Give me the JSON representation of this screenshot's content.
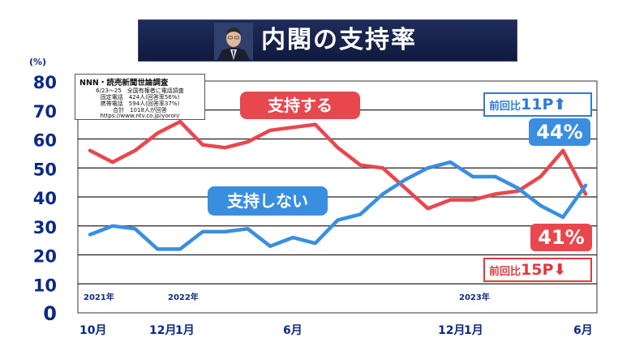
{
  "title": "内閣の支持率",
  "unit": "(%)",
  "source": {
    "title": "NNN・読売新聞世論調査",
    "lines": [
      "6/23～25　全国有権者に電話調査",
      "固定電話　424人(回答率56%)",
      "携帯電話　594人(回答率37%)",
      "合計　1018人が回答",
      "https://www.ntv.co.jp/yoron/"
    ]
  },
  "labels": {
    "support": "支持する",
    "nosupport": "支持しない",
    "support_latest": "41%",
    "nosupport_latest": "44%",
    "nosupport_change_prefix": "前回比",
    "nosupport_change_value": "11P",
    "nosupport_change_arrow": "⬆",
    "support_change_prefix": "前回比",
    "support_change_value": "15P",
    "support_change_arrow": "⬇"
  },
  "x_labels": [
    "10月",
    "12月",
    "1月",
    "6月",
    "12月",
    "1月",
    "6月"
  ],
  "year_labels": [
    "2021年",
    "2022年",
    "2023年"
  ],
  "colors": {
    "support": "#e8474e",
    "nosupport": "#3a8ee0",
    "axis_text": "#0b2a86",
    "grid": "#222222",
    "title_bg": "#16214a"
  },
  "chart_data": {
    "type": "line",
    "ylim": [
      0,
      80
    ],
    "yticks": [
      0,
      10,
      20,
      30,
      40,
      50,
      60,
      70,
      80
    ],
    "grid": true,
    "x_tick_labels": [
      "10月",
      "12月",
      "1月",
      "6月",
      "12月",
      "1月",
      "6月"
    ],
    "year_labels": [
      "2021年",
      "2022年",
      "2023年"
    ],
    "series": [
      {
        "name": "支持する",
        "values": [
          56,
          52,
          56,
          62,
          66,
          58,
          57,
          59,
          63,
          64,
          65,
          57,
          51,
          50,
          43,
          36,
          39,
          39,
          41,
          42,
          47,
          56,
          41
        ]
      },
      {
        "name": "支持しない",
        "values": [
          27,
          30,
          29,
          22,
          22,
          28,
          28,
          29,
          23,
          26,
          24,
          32,
          34,
          41,
          46,
          50,
          52,
          47,
          47,
          43,
          37,
          33,
          44
        ]
      }
    ]
  }
}
